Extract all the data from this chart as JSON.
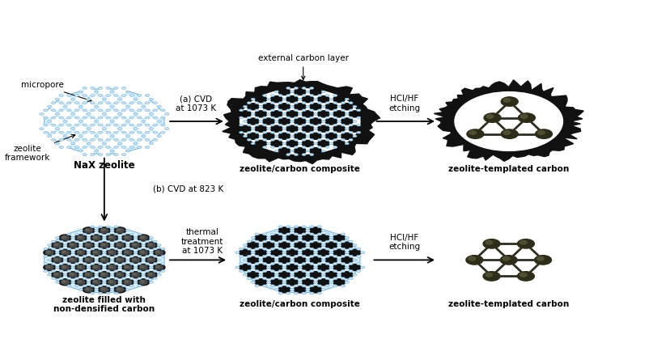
{
  "bg_color": "#ffffff",
  "fig_width": 8.29,
  "fig_height": 4.45,
  "dpi": 100,
  "zeolite_frame_color": "#7ab8e0",
  "zeolite_node_color": "#c5e3f5",
  "zeolite_bg_color": "#d8eef8",
  "carbon_dark": "#111111",
  "carbon_mid": "#3a3a3a",
  "carbon_olive": "#3d3d2a",
  "labels": {
    "micropore": "micropore",
    "zeolite_framework": "zeolite\nframework",
    "nax": "NaX zeolite",
    "ext_carbon": "external carbon layer",
    "zcc_top": "zeolite/carbon composite",
    "ztc_top": "zeolite-templated carbon",
    "cvd_top": "(a) CVD\nat 1073 K",
    "hclhf_top": "HCl/HF\netching",
    "cvd_bottom": "(b) CVD at 823 K",
    "zfilled": "zeolite filled with\nnon-densified carbon",
    "thermal": "thermal\ntreatment\nat 1073 K",
    "hclhf_bot": "HCl/HF\netching",
    "zcc_bottom": "zeolite/carbon composite",
    "ztc_bottom": "zeolite-templated carbon"
  }
}
